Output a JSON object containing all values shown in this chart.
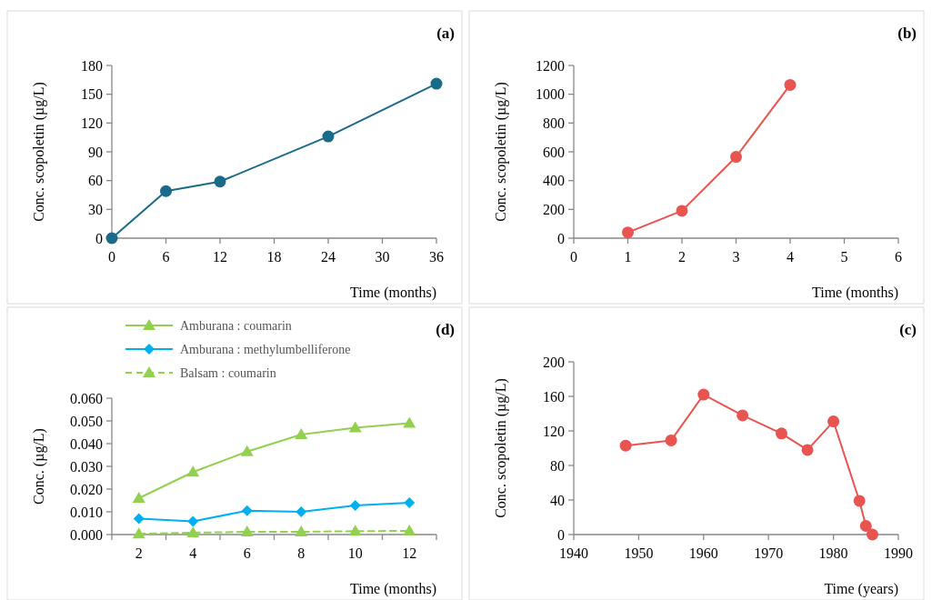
{
  "chart_data": [
    {
      "type": "line",
      "title": "(a)",
      "xlabel": "Time (months)",
      "ylabel": "Conc. scopoletin (µg/L)",
      "x": [
        0,
        6,
        12,
        24,
        36
      ],
      "xlim": [
        0,
        36
      ],
      "xticks": [
        0,
        6,
        12,
        18,
        24,
        30,
        36
      ],
      "ylim": [
        0,
        180
      ],
      "yticks": [
        0,
        30,
        60,
        90,
        120,
        150,
        180
      ],
      "marker": "circle",
      "grid": false,
      "legend": false,
      "series": [
        {
          "color": "#1a6a8a",
          "values": [
            0,
            49,
            59,
            106,
            161
          ]
        }
      ]
    },
    {
      "type": "line",
      "title": "(b)",
      "xlabel": "Time (months)",
      "ylabel": "Conc. scopoletin (µg/L)",
      "x": [
        1,
        2,
        3,
        4
      ],
      "xlim": [
        0,
        6
      ],
      "xticks": [
        0,
        1,
        2,
        3,
        4,
        5,
        6
      ],
      "ylim": [
        0,
        1200
      ],
      "yticks": [
        0,
        200,
        400,
        600,
        800,
        1000,
        1200
      ],
      "marker": "circle",
      "grid": false,
      "legend": false,
      "series": [
        {
          "color": "#e85450",
          "values": [
            40,
            190,
            565,
            1065
          ]
        }
      ]
    },
    {
      "type": "line",
      "title": "(d)",
      "xlabel": "Time (months)",
      "ylabel": "Conc. (µg/L)",
      "categories": [
        "2",
        "4",
        "6",
        "8",
        "10",
        "12"
      ],
      "ylim": [
        0,
        0.06
      ],
      "yticks": [
        {
          "value": 0,
          "label": "0.000"
        },
        {
          "value": 0.01,
          "label": "0.010"
        },
        {
          "value": 0.02,
          "label": "0.020"
        },
        {
          "value": 0.03,
          "label": "0.030"
        },
        {
          "value": 0.04,
          "label": "0.040"
        },
        {
          "value": 0.05,
          "label": "0.050"
        },
        {
          "value": 0.06,
          "label": "0.060"
        }
      ],
      "grid": false,
      "legend": "top",
      "series": [
        {
          "name": "Amburana : coumarin",
          "color": "#92d050",
          "marker": "triangle",
          "line_style": "solid",
          "values": [
            0.016,
            0.0275,
            0.0365,
            0.044,
            0.047,
            0.049
          ]
        },
        {
          "name": "Amburana : methylumbelliferone",
          "color": "#00b0f0",
          "marker": "diamond",
          "line_style": "solid",
          "values": [
            0.007,
            0.0058,
            0.0105,
            0.01,
            0.0128,
            0.014
          ]
        },
        {
          "name": "Balsam : coumarin",
          "color": "#92d050",
          "marker": "triangle",
          "line_style": "dashed",
          "values": [
            0.0003,
            0.0008,
            0.0012,
            0.0012,
            0.0015,
            0.0016
          ]
        }
      ]
    },
    {
      "type": "line",
      "title": "(c)",
      "xlabel": "Time (years)",
      "ylabel": "Conc. scopoletin (µg/L)",
      "x": [
        1948,
        1955,
        1960,
        1966,
        1972,
        1976,
        1980,
        1984,
        1985,
        1986
      ],
      "xlim": [
        1940,
        1990
      ],
      "xticks": [
        1940,
        1950,
        1960,
        1970,
        1980,
        1990
      ],
      "ylim": [
        0,
        200
      ],
      "yticks": [
        0,
        40,
        80,
        120,
        160,
        200
      ],
      "marker": "circle",
      "grid": false,
      "legend": false,
      "series": [
        {
          "color": "#e85450",
          "values": [
            103,
            109,
            162,
            138,
            117,
            98,
            131,
            39,
            10,
            0
          ]
        }
      ]
    }
  ]
}
